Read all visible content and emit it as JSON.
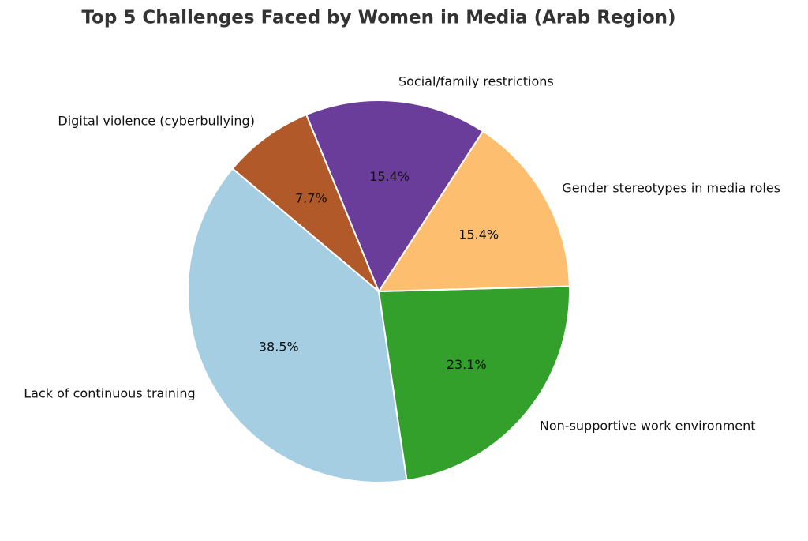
{
  "chart_data": {
    "type": "pie",
    "title": "Top 5 Challenges Faced by Women in Media (Arab Region)",
    "categories": [
      "Lack of continuous training",
      "Non-supportive work environment",
      "Gender stereotypes in media roles",
      "Social/family restrictions",
      "Digital violence (cyberbullying)"
    ],
    "values": [
      38.5,
      23.1,
      15.4,
      15.4,
      7.7
    ],
    "value_labels": [
      "38.5%",
      "23.1%",
      "15.4%",
      "15.4%",
      "7.7%"
    ],
    "colors": [
      "#a6cee3",
      "#33a02c",
      "#fdbf6f",
      "#6a3d9a",
      "#b15928"
    ]
  }
}
